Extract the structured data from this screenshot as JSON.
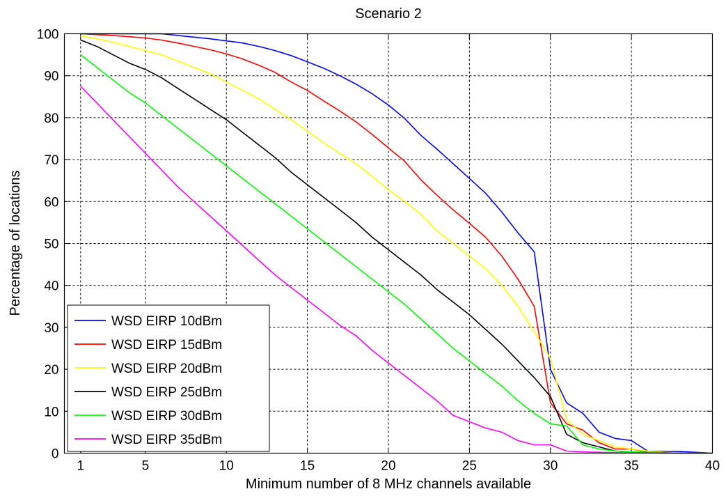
{
  "chart_data": {
    "type": "line",
    "title": "Scenario 2",
    "xlabel": "Minimum number of 8 MHz channels available",
    "ylabel": "Percentage of locations",
    "xlim": [
      0,
      40
    ],
    "ylim": [
      0,
      100
    ],
    "xticks": [
      1,
      5,
      10,
      15,
      20,
      25,
      30,
      35,
      40
    ],
    "yticks": [
      0,
      10,
      20,
      30,
      40,
      50,
      60,
      70,
      80,
      90,
      100
    ],
    "grid": true,
    "legend_position": "bottom-left",
    "x": [
      1,
      2,
      3,
      4,
      5,
      6,
      7,
      8,
      9,
      10,
      11,
      12,
      13,
      14,
      15,
      16,
      17,
      18,
      19,
      20,
      21,
      22,
      23,
      24,
      25,
      26,
      27,
      28,
      29,
      30,
      31,
      32,
      33,
      34,
      35,
      36,
      37,
      38,
      39,
      40
    ],
    "series": [
      {
        "name": "WSD EIRP 10dBm",
        "color": "#0000ff",
        "values": [
          100,
          100,
          100,
          100,
          100,
          100,
          99.6,
          99.2,
          98.8,
          98.3,
          97.8,
          97,
          96,
          94.8,
          93.3,
          91.8,
          90,
          88,
          85.7,
          83,
          79.8,
          75.8,
          72.5,
          69,
          65.5,
          62,
          57.5,
          52.5,
          48,
          20,
          12,
          9.5,
          5,
          3.5,
          3,
          0.5,
          0.4,
          0.4,
          0.2,
          0
        ]
      },
      {
        "name": "WSD EIRP 15dBm",
        "color": "#ff0000",
        "values": [
          100,
          99.8,
          99.6,
          99.3,
          99,
          98.5,
          97.8,
          97,
          96.2,
          95.2,
          94,
          92.5,
          90.8,
          88.5,
          86.5,
          84,
          81.6,
          79,
          76,
          72.8,
          69.6,
          65.2,
          61.5,
          58,
          54.8,
          51.5,
          47,
          41.5,
          35,
          12,
          7,
          5.5,
          2.5,
          1,
          1,
          0.3,
          0.2,
          0.1,
          0,
          0
        ]
      },
      {
        "name": "WSD EIRP 20dBm",
        "color": "#ffff00",
        "values": [
          99.5,
          98.8,
          98,
          97,
          96,
          95,
          93.5,
          92,
          90.5,
          88.5,
          86.5,
          84.5,
          82,
          79.5,
          76.8,
          74,
          71.5,
          69,
          66,
          62.8,
          60,
          57,
          53,
          50,
          47,
          44,
          40,
          35,
          29,
          22.5,
          8,
          4.5,
          3,
          1.5,
          1,
          0.5,
          0.2,
          0.1,
          0,
          0
        ]
      },
      {
        "name": "WSD EIRP 25dBm",
        "color": "#000000",
        "values": [
          98.5,
          97,
          95,
          93,
          91.5,
          89.5,
          87,
          84.5,
          82,
          79.5,
          76.5,
          73.5,
          70.5,
          67,
          64,
          61,
          58,
          55,
          51.5,
          48.5,
          45.5,
          42.5,
          39,
          36,
          33,
          29.5,
          26,
          22,
          18,
          13.5,
          4.5,
          2.5,
          1.5,
          0.5,
          0.3,
          0.2,
          0.1,
          0,
          0,
          0
        ]
      },
      {
        "name": "WSD EIRP 30dBm",
        "color": "#00ff00",
        "values": [
          95,
          92,
          89,
          86,
          83.5,
          80.5,
          77.5,
          74.5,
          71.5,
          68.5,
          65.5,
          62.5,
          59.5,
          56.5,
          53.5,
          50.5,
          47.5,
          44.5,
          41.5,
          38.5,
          35.5,
          32,
          28.5,
          25,
          22,
          19,
          16,
          12.5,
          9.5,
          7,
          6.5,
          2,
          1,
          0.5,
          0.3,
          0.2,
          0.1,
          0,
          0,
          0
        ]
      },
      {
        "name": "WSD EIRP 35dBm",
        "color": "#ff00ff",
        "values": [
          87.5,
          83.5,
          79.5,
          75.5,
          71.5,
          67.5,
          63.5,
          60,
          56.5,
          53,
          49.5,
          46,
          42.5,
          39.5,
          36.5,
          33.5,
          30.5,
          28,
          24.5,
          21.5,
          18.5,
          15.5,
          12.5,
          9,
          7.5,
          6,
          5,
          3,
          2,
          2,
          0.5,
          0.3,
          0.2,
          0.1,
          0.1,
          0.1,
          0,
          0,
          0,
          0
        ]
      }
    ]
  }
}
